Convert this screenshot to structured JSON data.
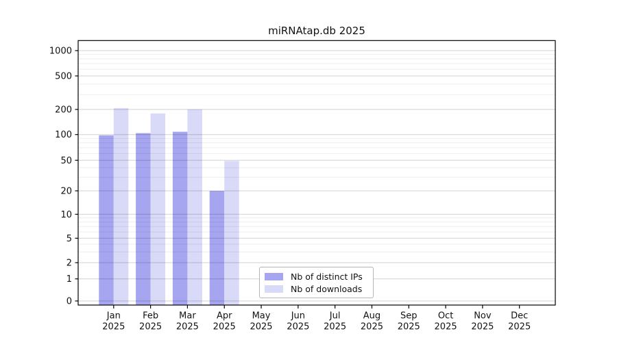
{
  "title": "miRNAtap.db 2025",
  "chart_data": {
    "type": "bar",
    "title": "miRNAtap.db 2025",
    "categories": [
      "Jan",
      "Feb",
      "Mar",
      "Apr",
      "May",
      "Jun",
      "Jul",
      "Aug",
      "Sep",
      "Oct",
      "Nov",
      "Dec"
    ],
    "x_tick_year": "2025",
    "series": [
      {
        "name": "Nb of distinct IPs",
        "color": "#a5a5f0",
        "values": [
          98,
          104,
          108,
          20,
          null,
          null,
          null,
          null,
          null,
          null,
          null,
          null
        ]
      },
      {
        "name": "Nb of downloads",
        "color": "#d9d9f8",
        "values": [
          207,
          179,
          201,
          49,
          null,
          null,
          null,
          null,
          null,
          null,
          null,
          null
        ]
      }
    ],
    "y_ticks": [
      0,
      1,
      2,
      5,
      10,
      20,
      50,
      100,
      200,
      500,
      1000
    ],
    "y_minor_ticks": [
      3,
      4,
      6,
      7,
      8,
      9,
      30,
      40,
      60,
      70,
      80,
      90,
      300,
      400,
      600,
      700,
      800,
      900
    ],
    "y_scale": "asinh (log-like above 1, linear near 0)",
    "ylim": [
      0,
      1400
    ],
    "xlabel": "",
    "ylabel": "",
    "grid": "horizontal major and minor gridlines drawn over bars",
    "legend_position": "inside plot, lower center-left"
  }
}
